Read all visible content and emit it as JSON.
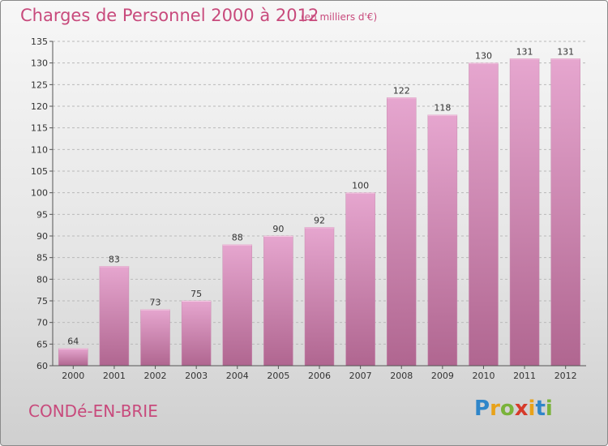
{
  "header": {
    "title": "Charges de Personnel 2000 à 2012",
    "unit": "(en milliers d'€)"
  },
  "footer": {
    "commune": "CONDé-EN-BRIE",
    "logo_letters": [
      {
        "ch": "P",
        "color": "#2f86c9"
      },
      {
        "ch": "r",
        "color": "#e8a21a"
      },
      {
        "ch": "o",
        "color": "#7ab33a"
      },
      {
        "ch": "x",
        "color": "#d63a2a"
      },
      {
        "ch": "i",
        "color": "#e8a21a"
      },
      {
        "ch": "t",
        "color": "#2f86c9"
      },
      {
        "ch": "i",
        "color": "#7ab33a"
      }
    ]
  },
  "chart_data": {
    "type": "bar",
    "title": "Charges de Personnel 2000 à 2012",
    "categories": [
      "2000",
      "2001",
      "2002",
      "2003",
      "2004",
      "2005",
      "2006",
      "2007",
      "2008",
      "2009",
      "2010",
      "2011",
      "2012"
    ],
    "values": [
      64,
      83,
      73,
      75,
      88,
      90,
      92,
      100,
      122,
      118,
      130,
      131,
      131
    ],
    "ylim": [
      60,
      135
    ],
    "yticks": [
      60,
      65,
      70,
      75,
      80,
      85,
      90,
      95,
      100,
      105,
      110,
      115,
      120,
      125,
      130,
      135
    ],
    "grid": true,
    "bar_color_top": "#e6a6cf",
    "bar_color_bottom": "#b06690"
  }
}
